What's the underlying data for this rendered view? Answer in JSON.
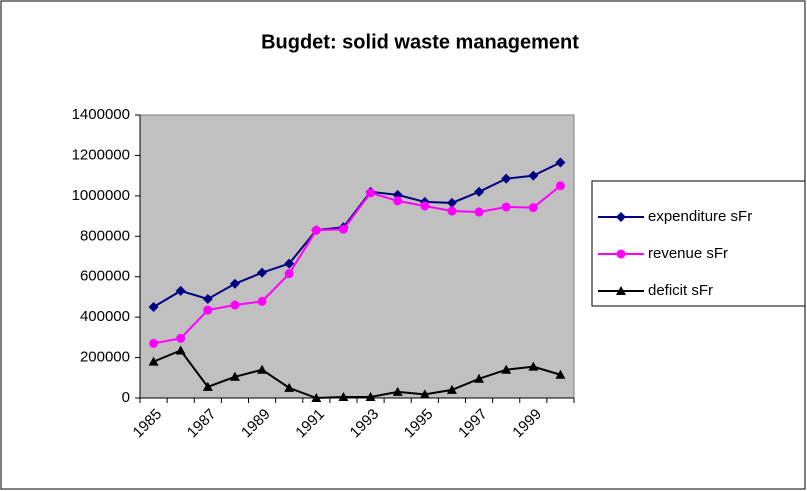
{
  "chart_data": {
    "type": "line",
    "title": "Bugdet: solid waste management",
    "categories": [
      "1985",
      null,
      "1987",
      null,
      "1989",
      null,
      "1991",
      null,
      "1993",
      null,
      "1995",
      null,
      "1997",
      null,
      "1999",
      null
    ],
    "series": [
      {
        "name": "expenditure sFr",
        "color": "#000080",
        "marker": "diamond",
        "values": [
          450000,
          530000,
          490000,
          565000,
          620000,
          665000,
          830000,
          845000,
          1020000,
          1005000,
          970000,
          965000,
          1020000,
          1085000,
          1100000,
          1165000
        ]
      },
      {
        "name": "revenue sFr",
        "color": "#ff00ff",
        "marker": "circle",
        "values": [
          270000,
          295000,
          435000,
          460000,
          478000,
          615000,
          830000,
          835000,
          1015000,
          975000,
          950000,
          925000,
          920000,
          945000,
          942000,
          1050000
        ]
      },
      {
        "name": "deficit sFr",
        "color": "#000000",
        "marker": "triangle",
        "values": [
          180000,
          235000,
          55000,
          105000,
          140000,
          50000,
          0,
          5000,
          5000,
          30000,
          18000,
          40000,
          95000,
          140000,
          155000,
          115000
        ]
      }
    ],
    "ylim": [
      0,
      1400000
    ],
    "yticks": [
      0,
      200000,
      400000,
      600000,
      800000,
      1000000,
      1200000,
      1400000
    ],
    "grid": false,
    "legend": "right",
    "plot_background": "#c0c0c0"
  }
}
